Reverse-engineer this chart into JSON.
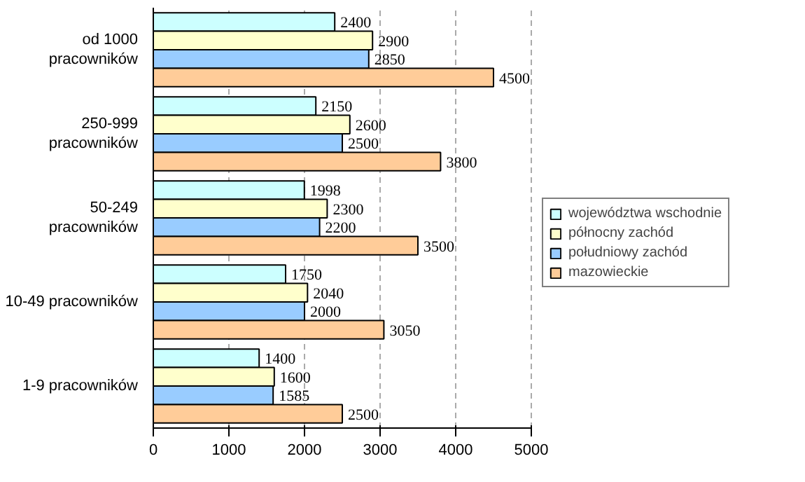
{
  "chart_data": {
    "type": "bar",
    "orientation": "horizontal",
    "categories": [
      "od 1000\npracowników",
      "250-999\npracowników",
      "50-249\npracowników",
      "10-49 pracowników",
      "1-9 pracowników"
    ],
    "series": [
      {
        "name": "województwa wschodnie",
        "color": "#ccffff",
        "values": [
          2400,
          2150,
          1998,
          1750,
          1400
        ]
      },
      {
        "name": "północny zachód",
        "color": "#ffffcc",
        "values": [
          2900,
          2600,
          2300,
          2040,
          1600
        ]
      },
      {
        "name": "południowy zachód",
        "color": "#99ccff",
        "values": [
          2850,
          2500,
          2200,
          2000,
          1585
        ]
      },
      {
        "name": "mazowieckie",
        "color": "#ffcc99",
        "values": [
          4500,
          3800,
          3500,
          3050,
          2500
        ]
      }
    ],
    "xlim": [
      0,
      5000
    ],
    "xticks": [
      0,
      1000,
      2000,
      3000,
      4000,
      5000
    ],
    "grid": "x",
    "legend": "right",
    "data_labels": true
  }
}
